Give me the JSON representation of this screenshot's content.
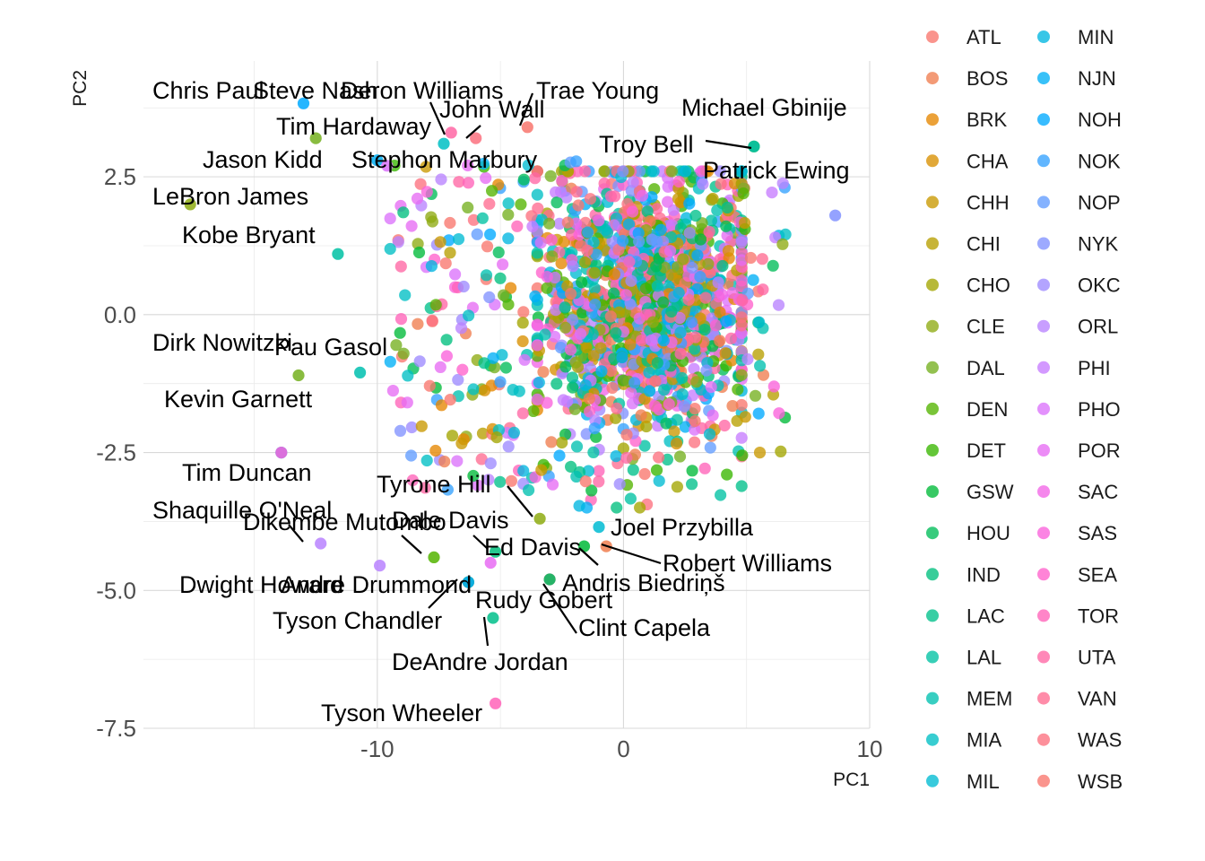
{
  "chart_data": {
    "type": "scatter",
    "title": "",
    "xlabel": "PC1",
    "ylabel": "PC2",
    "xlim": [
      -19.5,
      10
    ],
    "ylim": [
      -7.5,
      4.6
    ],
    "x_ticks": [
      -10,
      0,
      10
    ],
    "y_ticks": [
      -7.5,
      -5.0,
      -2.5,
      0.0,
      2.5
    ],
    "x_tick_labels": [
      "-10",
      "0",
      "10"
    ],
    "y_tick_labels": [
      "-7.5",
      "-5.0",
      "-2.5",
      "0.0",
      "2.5"
    ],
    "grid": true,
    "legend_position": "right",
    "legend_columns": 2,
    "series": [
      {
        "name": "ATL",
        "color": "#F8766D"
      },
      {
        "name": "BOS",
        "color": "#F07E4F"
      },
      {
        "name": "BRK",
        "color": "#E58700"
      },
      {
        "name": "CHA",
        "color": "#D89000"
      },
      {
        "name": "CHH",
        "color": "#C99800"
      },
      {
        "name": "CHI",
        "color": "#B79F00"
      },
      {
        "name": "CHO",
        "color": "#A3A500"
      },
      {
        "name": "CLE",
        "color": "#8EAB12"
      },
      {
        "name": "DAL",
        "color": "#74B01F"
      },
      {
        "name": "DEN",
        "color": "#53B400"
      },
      {
        "name": "DET",
        "color": "#39B600"
      },
      {
        "name": "GSW",
        "color": "#00BA38"
      },
      {
        "name": "HOU",
        "color": "#00BC59"
      },
      {
        "name": "IND",
        "color": "#00BF7D"
      },
      {
        "name": "LAC",
        "color": "#00C08B"
      },
      {
        "name": "LAL",
        "color": "#00C1A3"
      },
      {
        "name": "MEM",
        "color": "#00C0AF"
      },
      {
        "name": "MIA",
        "color": "#00BFC4"
      },
      {
        "name": "MIL",
        "color": "#00BBD2"
      },
      {
        "name": "MIN",
        "color": "#00B6E0"
      },
      {
        "name": "NJN",
        "color": "#00B0F6"
      },
      {
        "name": "NOH",
        "color": "#00A9FF"
      },
      {
        "name": "NOK",
        "color": "#35A2FF"
      },
      {
        "name": "NOP",
        "color": "#619CFF"
      },
      {
        "name": "NYK",
        "color": "#8192FF"
      },
      {
        "name": "OKC",
        "color": "#9E8AFF"
      },
      {
        "name": "ORL",
        "color": "#B983FF"
      },
      {
        "name": "PHI",
        "color": "#C77CFF"
      },
      {
        "name": "PHO",
        "color": "#DB72FB"
      },
      {
        "name": "POR",
        "color": "#E76BF3"
      },
      {
        "name": "SAC",
        "color": "#F265E7"
      },
      {
        "name": "SAS",
        "color": "#FA62DB"
      },
      {
        "name": "SEA",
        "color": "#FF61CC"
      },
      {
        "name": "TOR",
        "color": "#FF63B9"
      },
      {
        "name": "UTA",
        "color": "#FF67A4"
      },
      {
        "name": "VAN",
        "color": "#FF6C91"
      },
      {
        "name": "WAS",
        "color": "#FC717F"
      },
      {
        "name": "WSB",
        "color": "#F8766D"
      }
    ],
    "legend_order": [
      "ATL",
      "BOS",
      "BRK",
      "CHA",
      "CHH",
      "CHI",
      "CHO",
      "CLE",
      "DAL",
      "DEN",
      "DET",
      "GSW",
      "HOU",
      "IND",
      "LAC",
      "LAL",
      "MEM",
      "MIA",
      "MIL",
      "MIN",
      "NJN",
      "NOH",
      "NOK",
      "NOP",
      "NYK",
      "OKC",
      "ORL",
      "PHI",
      "PHO",
      "POR",
      "SAC",
      "SAS",
      "SEA",
      "TOR",
      "UTA",
      "VAN",
      "WAS",
      "WSB"
    ],
    "labeled_points": [
      {
        "label": "Chris Paul",
        "x": -13.0,
        "y": 3.83,
        "team": "NOH"
      },
      {
        "label": "Steve Nash",
        "x": -12.5,
        "y": 3.2,
        "team": "DAL"
      },
      {
        "label": "Deron Williams",
        "x": -7.0,
        "y": 3.3,
        "team": "UTA"
      },
      {
        "label": "Trae Young",
        "x": -3.9,
        "y": 3.4,
        "team": "ATL"
      },
      {
        "label": "John Wall",
        "x": -6.0,
        "y": 3.2,
        "team": "WAS"
      },
      {
        "label": "Tim Hardaway",
        "x": -7.3,
        "y": 3.1,
        "team": "MIA"
      },
      {
        "label": "Michael Gbinije",
        "x": 5.3,
        "y": 3.05,
        "team": "DET"
      },
      {
        "label": "Troy Bell",
        "x": 5.3,
        "y": 3.05,
        "team": "MEM"
      },
      {
        "label": "Jason Kidd",
        "x": -10.0,
        "y": 2.8,
        "team": "NJN"
      },
      {
        "label": "Stephon Marbury",
        "x": -9.6,
        "y": 2.7,
        "team": "PHO"
      },
      {
        "label": "Patrick Ewing",
        "x": 8.6,
        "y": 1.8,
        "team": "NYK"
      },
      {
        "label": "LeBron James",
        "x": -17.6,
        "y": 2.0,
        "team": "CLE"
      },
      {
        "label": "Kobe Bryant",
        "x": -11.6,
        "y": 1.1,
        "team": "LAL"
      },
      {
        "label": "Dirk Nowitzki",
        "x": -13.2,
        "y": -1.1,
        "team": "DAL"
      },
      {
        "label": "Pau Gasol",
        "x": -10.7,
        "y": -1.05,
        "team": "MEM"
      },
      {
        "label": "Kevin Garnett",
        "x": -13.9,
        "y": -2.5,
        "team": "MIN"
      },
      {
        "label": "Tim Duncan",
        "x": -13.9,
        "y": -2.5,
        "team": "SAS"
      },
      {
        "label": "Tyrone Hill",
        "x": -3.4,
        "y": -3.7,
        "team": "CLE"
      },
      {
        "label": "Shaquille O'Neal",
        "x": -12.3,
        "y": -4.15,
        "team": "ORL"
      },
      {
        "label": "Dikembe Mutombo",
        "x": -7.7,
        "y": -4.4,
        "team": "DEN"
      },
      {
        "label": "Dale Davis",
        "x": -5.2,
        "y": -4.3,
        "team": "IND"
      },
      {
        "label": "Ed Davis",
        "x": -5.4,
        "y": -4.5,
        "team": "POR"
      },
      {
        "label": "Joel Przybilla",
        "x": -1.0,
        "y": -3.85,
        "team": "MIL"
      },
      {
        "label": "Robert Williams",
        "x": -0.7,
        "y": -4.2,
        "team": "BOS"
      },
      {
        "label": "Andris Biedriņš",
        "x": -1.6,
        "y": -4.2,
        "team": "GSW"
      },
      {
        "label": "Dwight Howard",
        "x": -9.9,
        "y": -4.55,
        "team": "ORL"
      },
      {
        "label": "Andre Drummond",
        "x": -6.3,
        "y": -4.85,
        "team": "DET"
      },
      {
        "label": "Tyson Chandler",
        "x": -6.3,
        "y": -4.85,
        "team": "NOH"
      },
      {
        "label": "Rudy Gobert",
        "x": -3.0,
        "y": -4.8,
        "team": "UTA"
      },
      {
        "label": "Clint Capela",
        "x": -3.0,
        "y": -4.8,
        "team": "HOU"
      },
      {
        "label": "DeAndre Jordan",
        "x": -5.3,
        "y": -5.5,
        "team": "LAC"
      },
      {
        "label": "Tyson Wheeler",
        "x": -5.2,
        "y": -7.05,
        "team": "TOR"
      }
    ]
  }
}
